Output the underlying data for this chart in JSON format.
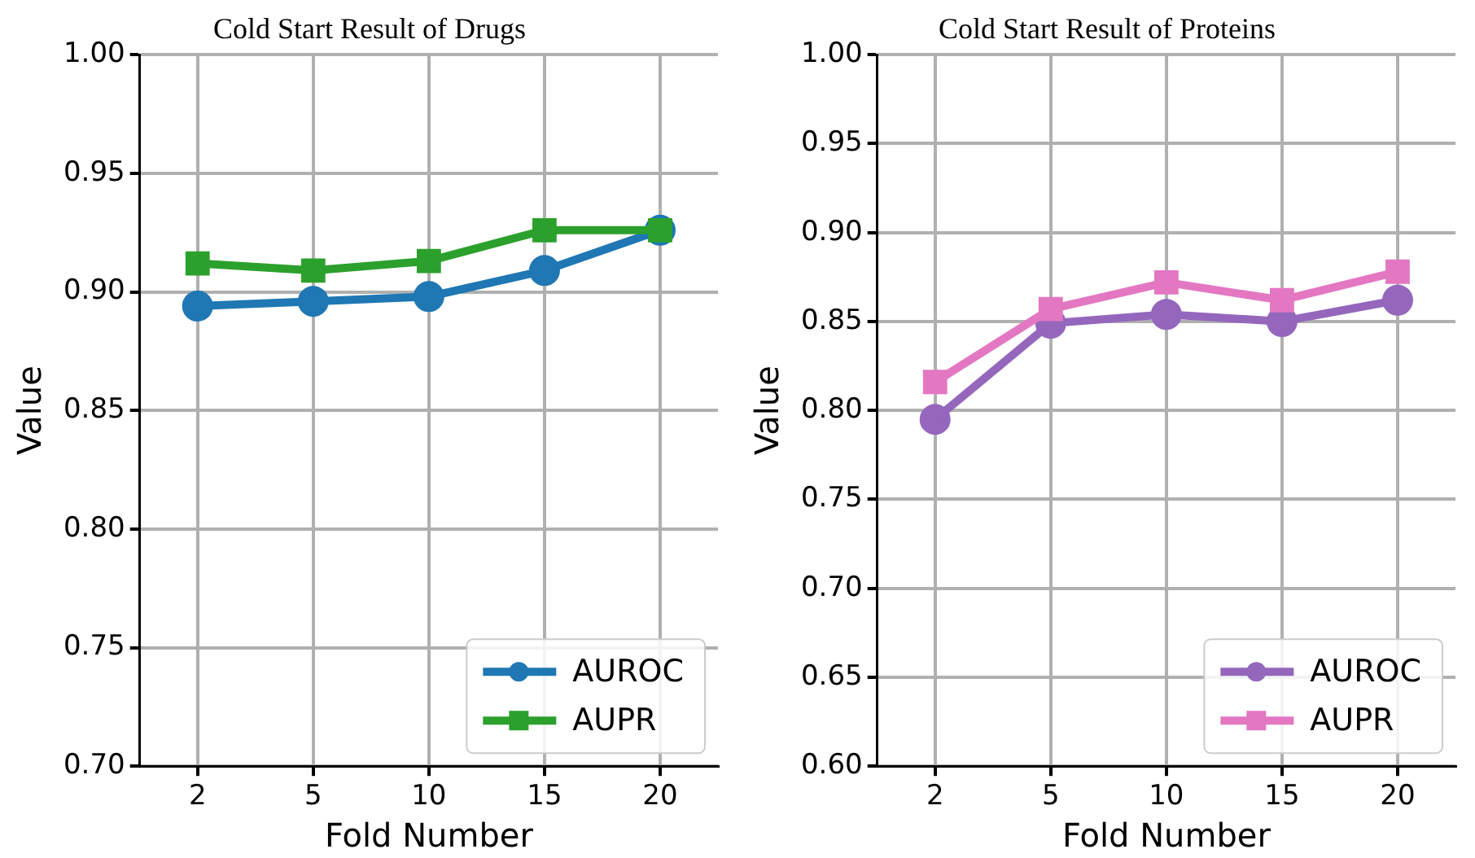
{
  "chart_data": [
    {
      "type": "line",
      "title": "Cold Start Result of Drugs",
      "xlabel": "Fold Number",
      "ylabel": "Value",
      "categories": [
        "2",
        "5",
        "10",
        "15",
        "20"
      ],
      "series": [
        {
          "name": "AUROC",
          "color": "#1f77b4",
          "marker": "circle",
          "values": [
            0.894,
            0.896,
            0.898,
            0.909,
            0.926
          ]
        },
        {
          "name": "AUPR",
          "color": "#2ca02c",
          "marker": "square",
          "values": [
            0.912,
            0.909,
            0.913,
            0.926,
            0.926
          ]
        }
      ],
      "ylim": [
        0.7,
        1.0
      ],
      "yticks": [
        {
          "value": 0.7,
          "label": "0.70"
        },
        {
          "value": 0.75,
          "label": "0.75"
        },
        {
          "value": 0.8,
          "label": "0.80"
        },
        {
          "value": 0.85,
          "label": "0.85"
        },
        {
          "value": 0.9,
          "label": "0.90"
        },
        {
          "value": 0.95,
          "label": "0.95"
        },
        {
          "value": 1.0,
          "label": "1.00"
        }
      ],
      "grid": true,
      "legend": "bottom right",
      "line_style": "solid"
    },
    {
      "type": "line",
      "title": "Cold Start Result of Proteins",
      "xlabel": "Fold Number",
      "ylabel": "Value",
      "categories": [
        "2",
        "5",
        "10",
        "15",
        "20"
      ],
      "series": [
        {
          "name": "AUROC",
          "color": "#9467bd",
          "marker": "circle",
          "values": [
            0.795,
            0.849,
            0.854,
            0.85,
            0.862
          ]
        },
        {
          "name": "AUPR",
          "color": "#e377c2",
          "marker": "square",
          "values": [
            0.816,
            0.857,
            0.872,
            0.862,
            0.878
          ]
        }
      ],
      "ylim": [
        0.6,
        1.0
      ],
      "yticks": [
        {
          "value": 0.6,
          "label": "0.60"
        },
        {
          "value": 0.65,
          "label": "0.65"
        },
        {
          "value": 0.7,
          "label": "0.70"
        },
        {
          "value": 0.75,
          "label": "0.75"
        },
        {
          "value": 0.8,
          "label": "0.80"
        },
        {
          "value": 0.85,
          "label": "0.85"
        },
        {
          "value": 0.9,
          "label": "0.90"
        },
        {
          "value": 0.95,
          "label": "0.95"
        },
        {
          "value": 1.0,
          "label": "1.00"
        }
      ],
      "grid": true,
      "legend": "bottom right",
      "line_style": "solid"
    }
  ]
}
